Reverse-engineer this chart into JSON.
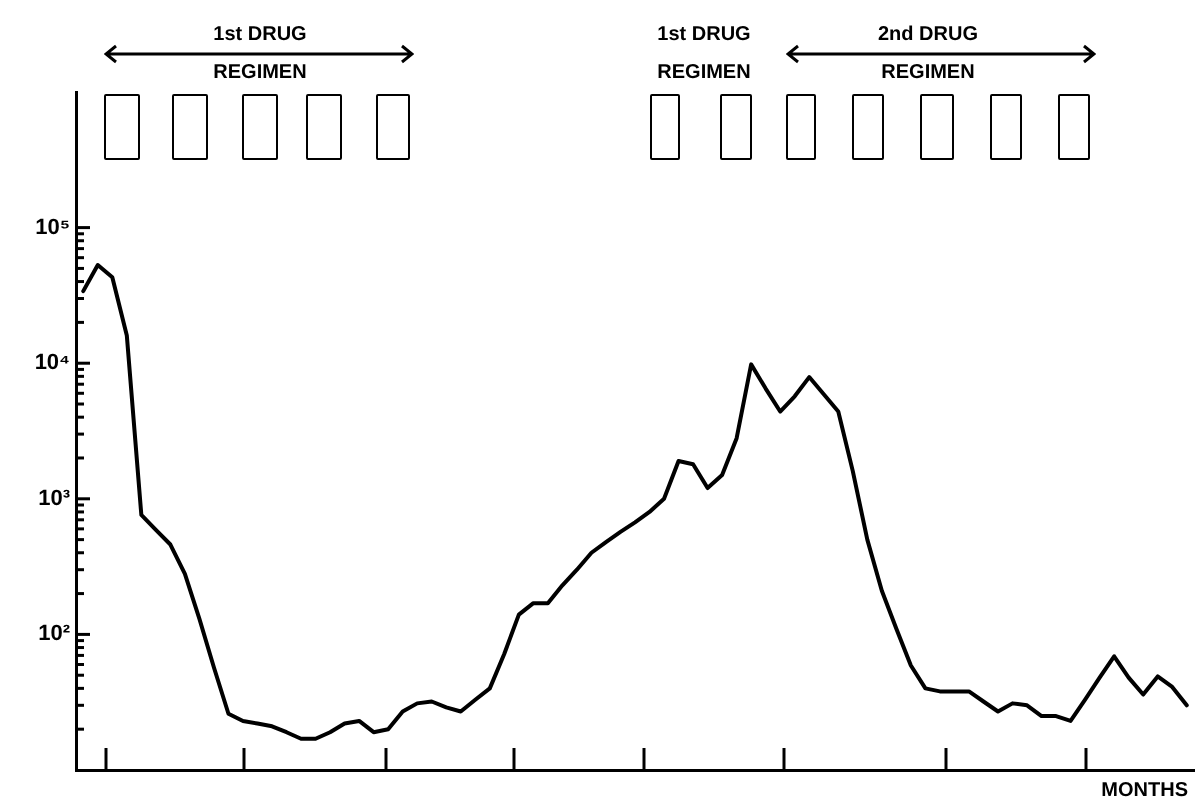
{
  "chart_data": {
    "type": "line",
    "xlabel": "MONTHS",
    "annotations": [
      "1st DRUG\nREGIMEN",
      "1st DRUG\nREGIMEN",
      "2nd DRUG\nREGIMEN"
    ],
    "categories": [
      null,
      null,
      null,
      null,
      null,
      null,
      null,
      null,
      null,
      null,
      null,
      null,
      null,
      null,
      null,
      null,
      null,
      null,
      null,
      null,
      null,
      null,
      null,
      null,
      null,
      null,
      null,
      null,
      null,
      null,
      null,
      null,
      null,
      null,
      null,
      null,
      null,
      null,
      null,
      null,
      null,
      null,
      null,
      null,
      null,
      null,
      null,
      null,
      null,
      null,
      null,
      null,
      null,
      null,
      null,
      null,
      null,
      null,
      null,
      null,
      null,
      null,
      null,
      null,
      null,
      null,
      null,
      null,
      null,
      null,
      null,
      null,
      null,
      null,
      null,
      null,
      null
    ],
    "series": [
      {
        "color": "#000000",
        "values": [
          34000,
          53000,
          43000,
          16000,
          760,
          590,
          460,
          280,
          130,
          57,
          26,
          23,
          22,
          21,
          19,
          17,
          17,
          19,
          22,
          23,
          19,
          20,
          27,
          31,
          32,
          29,
          27,
          33,
          40,
          72,
          140,
          170,
          170,
          230,
          300,
          400,
          480,
          570,
          670,
          800,
          1000,
          1900,
          1800,
          1200,
          1500,
          2800,
          9800,
          6500,
          4400,
          5700,
          7900,
          5900,
          4400,
          1600,
          500,
          210,
          110,
          59,
          40,
          38,
          38,
          38,
          32,
          27,
          31,
          30,
          25,
          25,
          23,
          33,
          48,
          69,
          48,
          36,
          49,
          41,
          30
        ]
      }
    ],
    "log": "y",
    "ylim": [
      10,
      1000000
    ],
    "yticks": [
      {
        "value": 20,
        "label": null
      },
      {
        "value": 30,
        "label": null
      },
      {
        "value": 40,
        "label": null
      },
      {
        "value": 50,
        "label": null
      },
      {
        "value": 60,
        "label": null
      },
      {
        "value": 70,
        "label": null
      },
      {
        "value": 80,
        "label": null
      },
      {
        "value": 90,
        "label": null
      },
      {
        "value": 100,
        "label": "10²"
      },
      {
        "value": 200,
        "label": null
      },
      {
        "value": 300,
        "label": null
      },
      {
        "value": 400,
        "label": null
      },
      {
        "value": 500,
        "label": null
      },
      {
        "value": 600,
        "label": null
      },
      {
        "value": 700,
        "label": null
      },
      {
        "value": 800,
        "label": null
      },
      {
        "value": 900,
        "label": null
      },
      {
        "value": 1000,
        "label": "10³"
      },
      {
        "value": 2000,
        "label": null
      },
      {
        "value": 3000,
        "label": null
      },
      {
        "value": 4000,
        "label": null
      },
      {
        "value": 5000,
        "label": null
      },
      {
        "value": 6000,
        "label": null
      },
      {
        "value": 7000,
        "label": null
      },
      {
        "value": 8000,
        "label": null
      },
      {
        "value": 9000,
        "label": null
      },
      {
        "value": 10000,
        "label": "10⁴"
      },
      {
        "value": 20000,
        "label": null
      },
      {
        "value": 30000,
        "label": null
      },
      {
        "value": 40000,
        "label": null
      },
      {
        "value": 50000,
        "label": null
      },
      {
        "value": 60000,
        "label": null
      },
      {
        "value": 70000,
        "label": null
      },
      {
        "value": 80000,
        "label": null
      },
      {
        "value": 90000,
        "label": null
      },
      {
        "value": 100000,
        "label": "10⁵"
      }
    ],
    "tick_labels": "y",
    "marker": "none",
    "line_style": "solid"
  }
}
